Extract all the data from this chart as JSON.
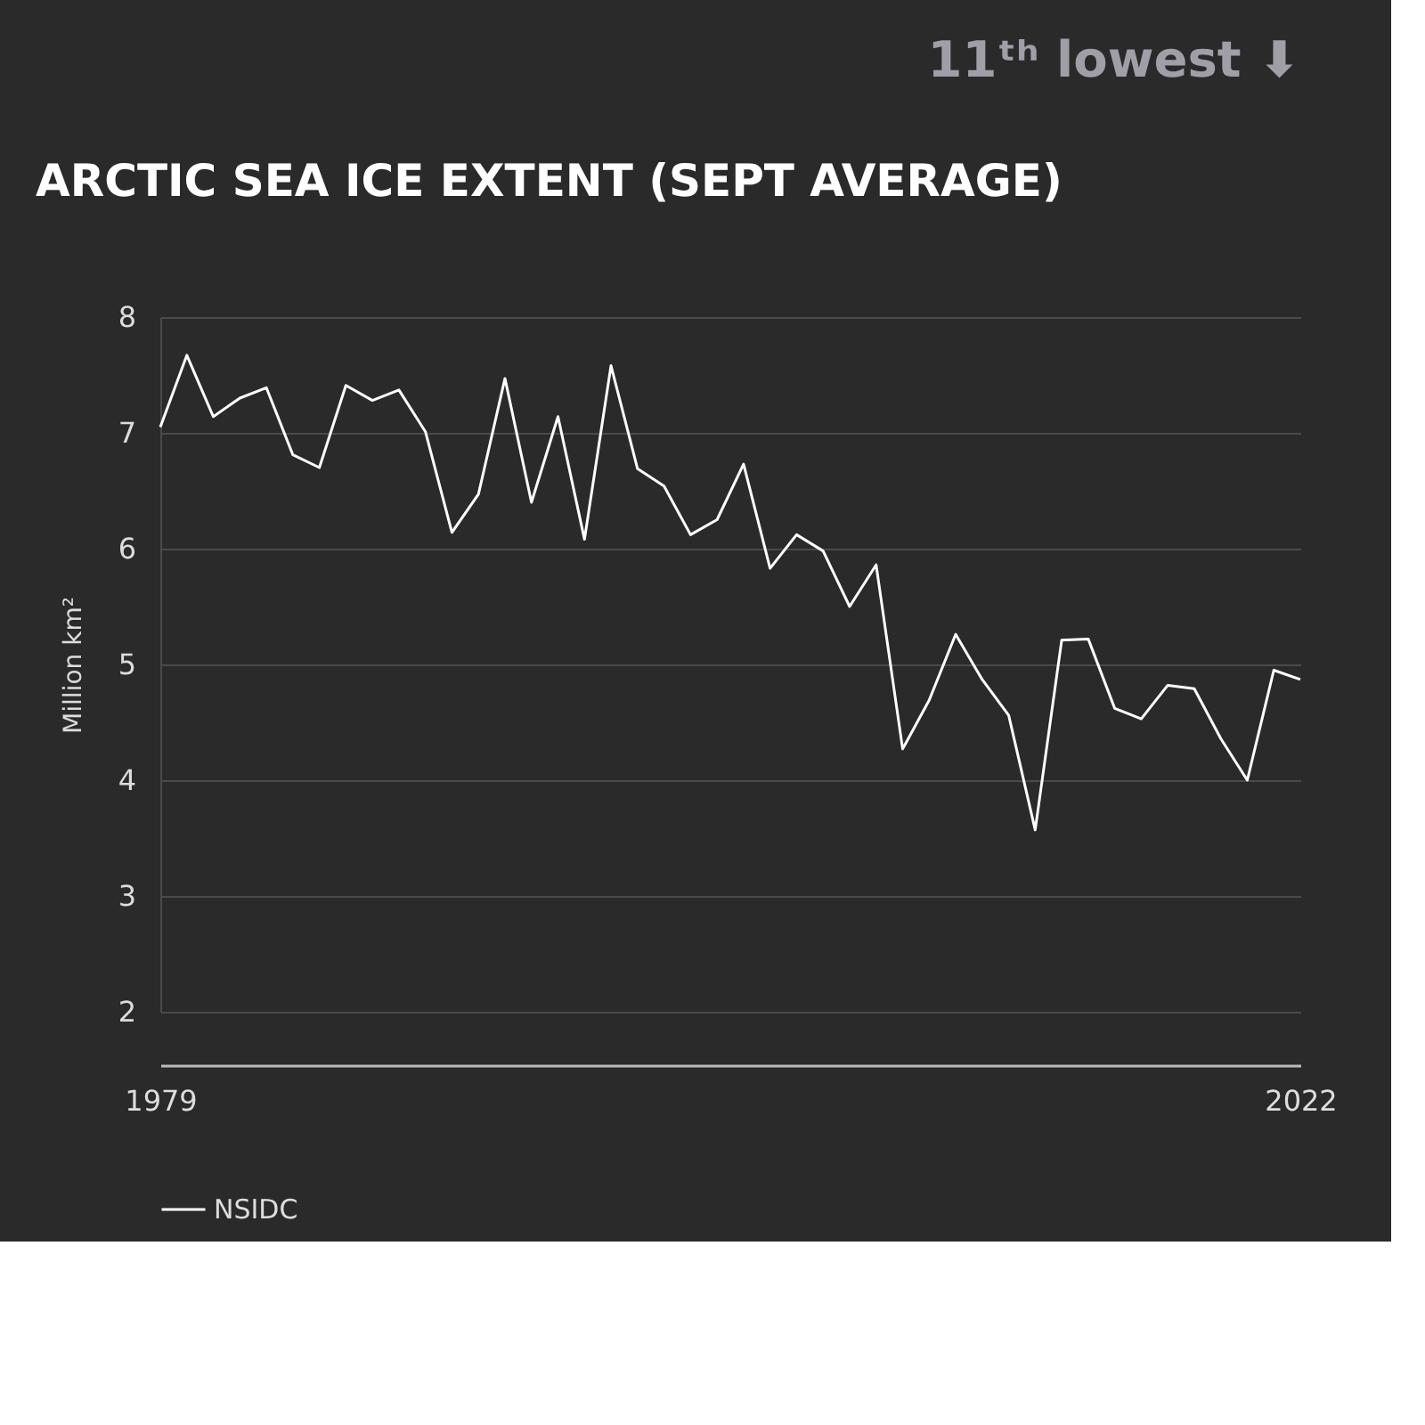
{
  "chart_data": {
    "type": "line",
    "title": "ARCTIC SEA ICE EXTENT (SEPT AVERAGE)",
    "ylabel": "Million km²",
    "annotations": [
      "11ᵗʰ lowest ⬇"
    ],
    "x": [
      1979,
      1980,
      1981,
      1982,
      1983,
      1984,
      1985,
      1986,
      1987,
      1988,
      1989,
      1990,
      1991,
      1992,
      1993,
      1994,
      1995,
      1996,
      1997,
      1998,
      1999,
      2000,
      2001,
      2002,
      2003,
      2004,
      2005,
      2006,
      2007,
      2008,
      2009,
      2010,
      2011,
      2012,
      2013,
      2014,
      2015,
      2016,
      2017,
      2018,
      2019,
      2020,
      2021,
      2022
    ],
    "series": [
      {
        "name": "NSIDC",
        "color": "#ffffff",
        "values": [
          7.05,
          7.67,
          7.14,
          7.3,
          7.39,
          6.81,
          6.7,
          7.41,
          7.28,
          7.37,
          7.01,
          6.14,
          6.47,
          7.47,
          6.4,
          7.14,
          6.08,
          7.58,
          6.69,
          6.54,
          6.12,
          6.25,
          6.73,
          5.83,
          6.12,
          5.98,
          5.5,
          5.86,
          4.27,
          4.69,
          5.26,
          4.87,
          4.56,
          3.57,
          5.21,
          5.22,
          4.62,
          4.53,
          4.82,
          4.79,
          4.36,
          4.0,
          4.95,
          4.87
        ]
      }
    ],
    "xlim": [
      1979,
      2022
    ],
    "xticks": [
      1979,
      2022
    ],
    "ylim": [
      2,
      8
    ],
    "yticks": [
      2,
      3,
      4,
      5,
      6,
      7,
      8
    ],
    "grid": "y",
    "legend": "bottom",
    "marker": "none",
    "line_style": "solid"
  }
}
